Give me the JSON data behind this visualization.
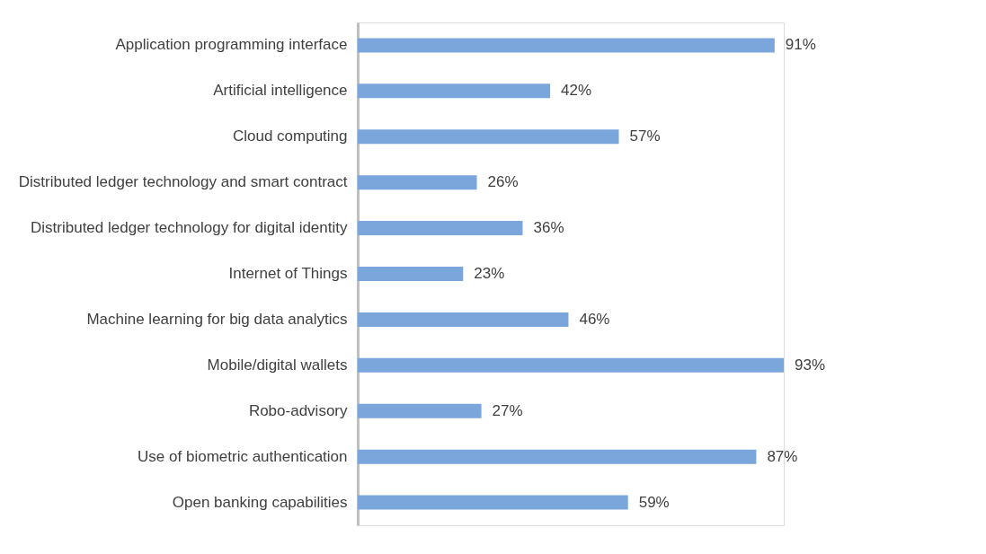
{
  "chart_data": {
    "type": "bar",
    "orientation": "horizontal",
    "categories": [
      "Application programming interface",
      "Artificial intelligence",
      "Cloud computing",
      "Distributed ledger technology and smart contract",
      "Distributed ledger technology for digital identity",
      "Internet of Things",
      "Machine learning for big data analytics",
      "Mobile/digital wallets",
      "Robo-advisory",
      "Use of biometric authentication",
      "Open banking capabilities"
    ],
    "values": [
      91,
      42,
      57,
      26,
      36,
      23,
      46,
      93,
      27,
      87,
      59
    ],
    "value_labels": [
      "91%",
      "42%",
      "57%",
      "26%",
      "36%",
      "23%",
      "46%",
      "93%",
      "27%",
      "87%",
      "59%"
    ],
    "color": "#7aa6dc"
  }
}
